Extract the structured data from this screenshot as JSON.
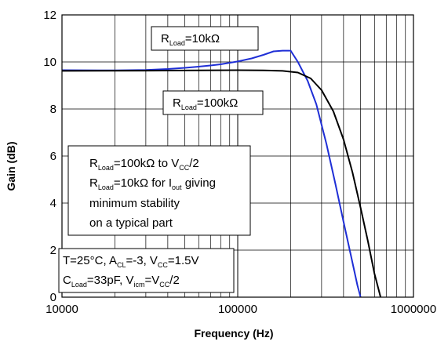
{
  "chart_data": {
    "type": "line",
    "xlabel": "Frequency (Hz)",
    "ylabel": "Gain (dB)",
    "xscale": "log",
    "xlim": [
      10000,
      1000000
    ],
    "ylim": [
      0,
      12
    ],
    "x_ticks": [
      10000,
      100000,
      1000000
    ],
    "x_tick_labels": [
      "10000",
      "100000",
      "1000000"
    ],
    "y_ticks": [
      0,
      2,
      4,
      6,
      8,
      10,
      12
    ],
    "y_tick_labels": [
      "0",
      "2",
      "4",
      "6",
      "8",
      "10",
      "12"
    ],
    "grid": true,
    "series": [
      {
        "color": "#1f2fd6",
        "x": [
          10000,
          20000,
          30000,
          40000,
          50000,
          60000,
          70000,
          80000,
          100000,
          120000,
          140000,
          160000,
          180000,
          200000,
          220000,
          250000,
          280000,
          320000,
          360000,
          400000,
          440000,
          480000,
          500000
        ],
        "y": [
          9.65,
          9.64,
          9.66,
          9.7,
          9.75,
          9.8,
          9.85,
          9.9,
          10.02,
          10.15,
          10.3,
          10.45,
          10.48,
          10.48,
          10.0,
          9.2,
          8.2,
          6.5,
          4.8,
          3.2,
          1.8,
          0.5,
          0.0
        ]
      },
      {
        "color": "#000000",
        "x": [
          10000,
          30000,
          60000,
          100000,
          140000,
          180000,
          220000,
          260000,
          300000,
          350000,
          400000,
          450000,
          500000,
          550000,
          600000,
          650000
        ],
        "y": [
          9.62,
          9.63,
          9.64,
          9.65,
          9.64,
          9.62,
          9.55,
          9.3,
          8.8,
          7.9,
          6.7,
          5.3,
          3.8,
          2.4,
          1.0,
          0.0
        ]
      }
    ],
    "annotations": {
      "label_10k": {
        "r": "R",
        "sub": "Load",
        "rest": "=10kΩ"
      },
      "label_100k": {
        "r": "R",
        "sub": "Load",
        "rest": "=100kΩ"
      },
      "box1": {
        "line1": {
          "r": "R",
          "sub": "Load",
          "mid": "=100kΩ to V",
          "sub2": "CC",
          "rest": "/2"
        },
        "line2": {
          "r": "R",
          "sub": "Load",
          "mid": "=10kΩ for I",
          "sub2": "out",
          "rest": " giving"
        },
        "line3": "minimum stability",
        "line4": "on a typical part"
      },
      "box2": {
        "line1": {
          "a": "T=25°C, A",
          "sub1": "CL",
          "b": "=-3, V",
          "sub2": "CC",
          "c": "=1.5V"
        },
        "line2": {
          "a": "C",
          "sub1": "Load",
          "b": "=33pF, V",
          "sub2": "icm",
          "c": "=V",
          "sub3": "CC",
          "d": "/2"
        }
      }
    }
  }
}
